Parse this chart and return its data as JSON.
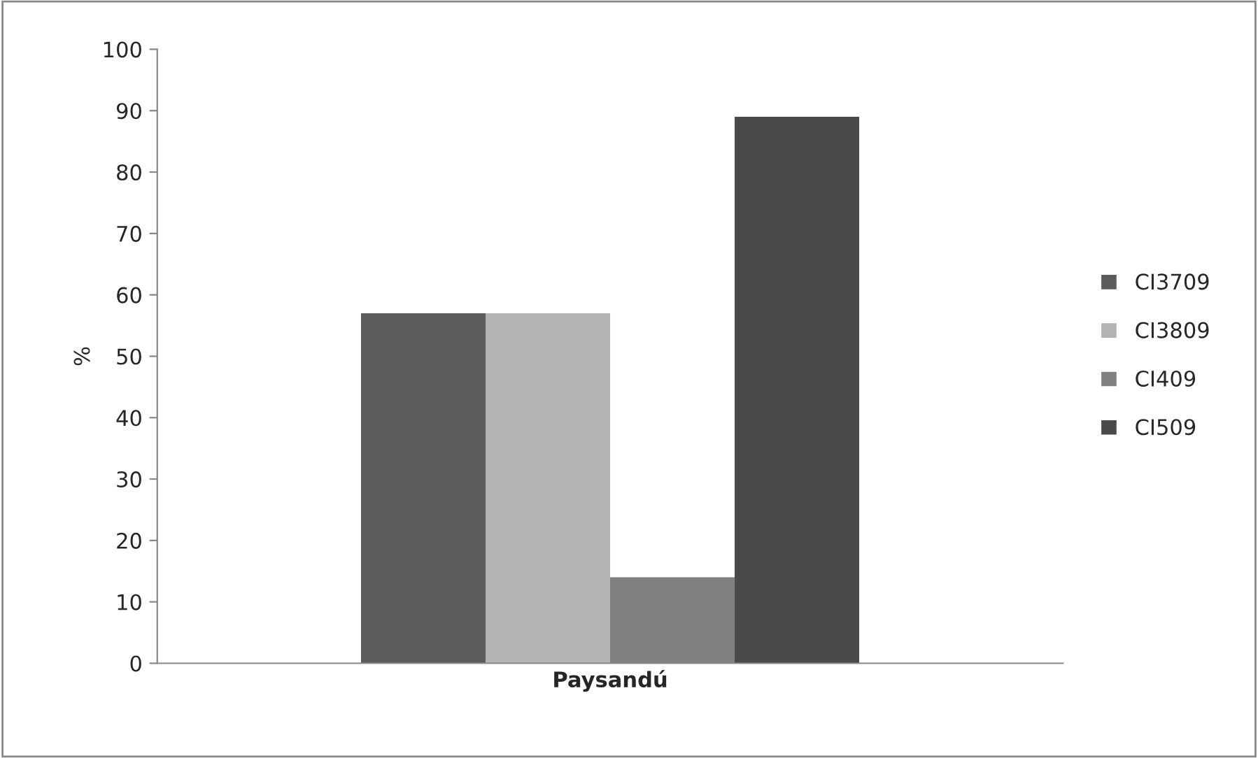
{
  "chart_data": {
    "type": "bar",
    "ylabel": "%",
    "categories": [
      "Paysandú"
    ],
    "series": [
      {
        "name": "CI3709",
        "color": "#5c5c5c",
        "values": [
          57
        ]
      },
      {
        "name": "CI3809",
        "color": "#b3b3b3",
        "values": [
          57
        ]
      },
      {
        "name": "CI409",
        "color": "#808080",
        "values": [
          14
        ]
      },
      {
        "name": "CI509",
        "color": "#4a4a4a",
        "values": [
          89
        ]
      }
    ],
    "ylim": [
      0,
      100
    ],
    "yticks": [
      0,
      10,
      20,
      30,
      40,
      50,
      60,
      70,
      80,
      90,
      100
    ],
    "grid": false,
    "legend": "right"
  }
}
